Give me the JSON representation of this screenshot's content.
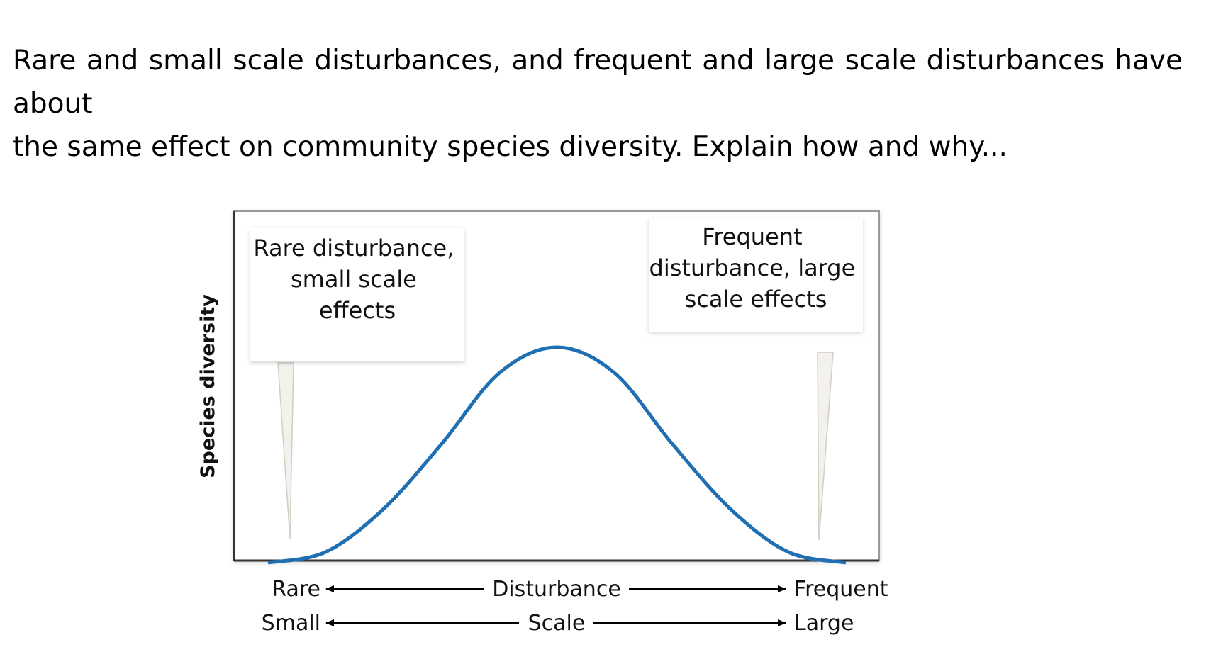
{
  "question": {
    "line1": "Rare and small scale disturbances, and frequent and large scale disturbances have about",
    "line2": "the same effect on community species diversity.  Explain how and why..."
  },
  "chart_data": {
    "type": "line",
    "ylabel": "Species diversity",
    "x_axis_rows": [
      {
        "left": "Rare",
        "center": "Disturbance",
        "right": "Frequent"
      },
      {
        "left": "Small",
        "center": "Scale",
        "right": "Large"
      }
    ],
    "callouts": [
      {
        "lines": [
          "Rare disturbance,",
          "small scale",
          "effects"
        ]
      },
      {
        "lines": [
          "Frequent",
          "disturbance, large",
          "scale effects"
        ]
      }
    ],
    "curve": {
      "shape": "hump",
      "x": [
        0,
        0.1,
        0.2,
        0.3,
        0.4,
        0.5,
        0.6,
        0.7,
        0.8,
        0.9,
        1.0
      ],
      "y": [
        0.0,
        0.05,
        0.25,
        0.55,
        0.88,
        1.0,
        0.88,
        0.55,
        0.25,
        0.05,
        0.0
      ]
    },
    "grid": false,
    "colors": {
      "curve": "#1f6fb2",
      "axis": "#333333",
      "callout_pointer": "#f3f1ec"
    }
  }
}
